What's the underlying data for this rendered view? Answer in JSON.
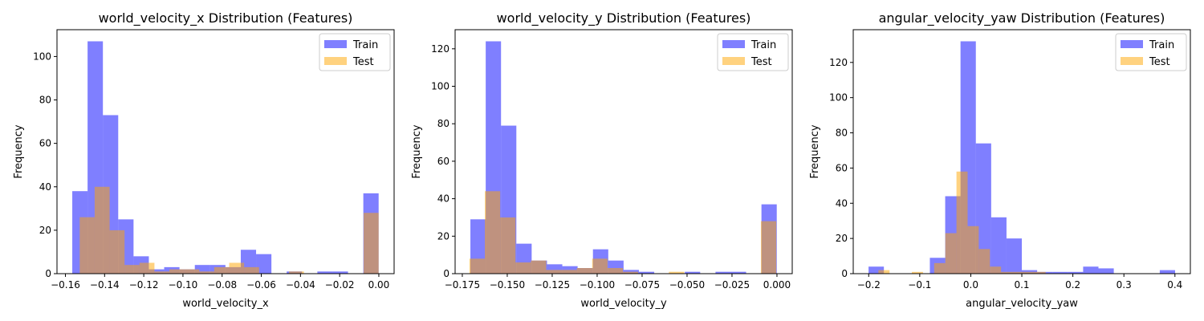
{
  "colors": {
    "train": "#0000ff",
    "test": "#ffa500",
    "train_alpha": 0.5,
    "test_alpha": 0.5
  },
  "chart_data": [
    {
      "type": "histogram",
      "title": "world_velocity_x Distribution (Features)",
      "xlabel": "world_velocity_x",
      "ylabel": "Frequency",
      "xlim": [
        -0.1643,
        0.0078
      ],
      "ylim": [
        0,
        112.35
      ],
      "xticks": [
        -0.16,
        -0.14,
        -0.12,
        -0.1,
        -0.08,
        -0.06,
        -0.04,
        -0.02,
        0.0
      ],
      "xtick_labels": [
        "−0.16",
        "−0.14",
        "−0.12",
        "−0.10",
        "−0.08",
        "−0.06",
        "−0.04",
        "−0.02",
        "0.00"
      ],
      "yticks": [
        0,
        20,
        40,
        60,
        80,
        100
      ],
      "legend": {
        "position": "top-right",
        "entries": [
          "Train",
          "Test"
        ]
      },
      "series": [
        {
          "name": "Train",
          "bin_start": -0.1565,
          "bin_width": 0.00782,
          "counts": [
            38,
            107,
            73,
            25,
            8,
            2,
            3,
            2,
            4,
            4,
            3,
            11,
            9,
            0,
            1,
            0,
            1,
            1,
            0,
            37
          ]
        },
        {
          "name": "Test",
          "bin_start": -0.1527,
          "bin_width": 0.00763,
          "counts": [
            26,
            40,
            20,
            4,
            5,
            1,
            2,
            2,
            1,
            3,
            5,
            3,
            0,
            0,
            1,
            0,
            0,
            0,
            0,
            28
          ]
        }
      ]
    },
    {
      "type": "histogram",
      "title": "world_velocity_y Distribution (Features)",
      "xlabel": "world_velocity_y",
      "ylabel": "Frequency",
      "xlim": [
        -0.179,
        0.0085
      ],
      "ylim": [
        0,
        130.2
      ],
      "xticks": [
        -0.175,
        -0.15,
        -0.125,
        -0.1,
        -0.075,
        -0.05,
        -0.025,
        0.0
      ],
      "xtick_labels": [
        "−0.175",
        "−0.150",
        "−0.125",
        "−0.100",
        "−0.075",
        "−0.050",
        "−0.025",
        "0.000"
      ],
      "yticks": [
        0,
        20,
        40,
        60,
        80,
        100,
        120
      ],
      "legend": {
        "position": "top-right",
        "entries": [
          "Train",
          "Test"
        ]
      },
      "series": [
        {
          "name": "Train",
          "bin_start": -0.1705,
          "bin_width": 0.00852,
          "counts": [
            29,
            124,
            79,
            16,
            7,
            5,
            4,
            3,
            13,
            7,
            2,
            1,
            0,
            0,
            1,
            0,
            1,
            1,
            0,
            37
          ]
        },
        {
          "name": "Test",
          "bin_start": -0.171,
          "bin_width": 0.00853,
          "counts": [
            8,
            44,
            30,
            6,
            7,
            2,
            2,
            3,
            8,
            3,
            1,
            0,
            0,
            1,
            0,
            0,
            0,
            0,
            0,
            28
          ]
        }
      ]
    },
    {
      "type": "histogram",
      "title": "angular_velocity_yaw Distribution (Features)",
      "xlabel": "angular_velocity_yaw",
      "ylabel": "Frequency",
      "xlim": [
        -0.2303,
        0.4302
      ],
      "ylim": [
        0,
        138.6
      ],
      "xticks": [
        -0.2,
        -0.1,
        0.0,
        0.1,
        0.2,
        0.3,
        0.4
      ],
      "xtick_labels": [
        "−0.2",
        "−0.1",
        "0.0",
        "0.1",
        "0.2",
        "0.3",
        "0.4"
      ],
      "yticks": [
        0,
        20,
        40,
        60,
        80,
        100,
        120
      ],
      "legend": {
        "position": "top-right",
        "entries": [
          "Train",
          "Test"
        ]
      },
      "series": [
        {
          "name": "Train",
          "bin_start": -0.2003,
          "bin_width": 0.03003,
          "counts": [
            4,
            0,
            0,
            0,
            9,
            44,
            132,
            74,
            32,
            20,
            2,
            1,
            1,
            1,
            4,
            3,
            0,
            0,
            0,
            2
          ]
        },
        {
          "name": "Test",
          "bin_start": -0.181,
          "bin_width": 0.02185,
          "counts": [
            2,
            0,
            0,
            1,
            0,
            6,
            23,
            58,
            27,
            14,
            4,
            1,
            1,
            1,
            1,
            0,
            0,
            0,
            0,
            0
          ]
        }
      ]
    }
  ]
}
